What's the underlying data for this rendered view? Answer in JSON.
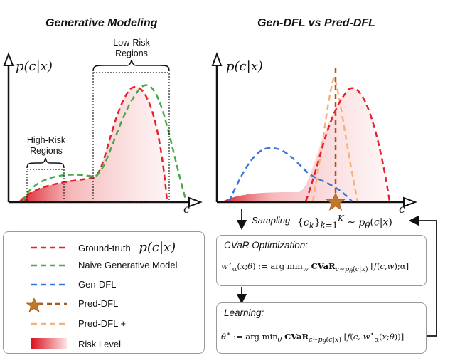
{
  "left_panel": {
    "title": "Generative Modeling",
    "ylabel": "p(c|x)",
    "xlabel": "c",
    "low_risk_label_line1": "Low-Risk",
    "low_risk_label_line2": "Regions",
    "high_risk_label_line1": "High-Risk",
    "high_risk_label_line2": "Regions"
  },
  "right_panel": {
    "title": "Gen-DFL vs Pred-DFL",
    "ylabel": "p(c|x)",
    "xlabel": "c"
  },
  "legend": {
    "items": [
      {
        "label": "Ground-truth",
        "math": "p(c|x)",
        "color": "#e8202a",
        "style": "dashed"
      },
      {
        "label": "Naive Generative Model",
        "color": "#4aa84a",
        "style": "dashed"
      },
      {
        "label": "Gen-DFL",
        "color": "#3b77d8",
        "style": "dashed"
      },
      {
        "label": "Pred-DFL",
        "color": "#a8581a",
        "style": "star-dashed"
      },
      {
        "label": "Pred-DFL +",
        "color": "#f6b27e",
        "style": "dashed"
      },
      {
        "label": "Risk Level",
        "color": "#e8202a",
        "style": "gradient"
      }
    ]
  },
  "pipeline": {
    "sampling_label": "Sampling",
    "sampling_formula": "{c_k}_{k=1}^K ~ p_θ(c|x)",
    "cvar_title": "CVaR Optimization:",
    "cvar_formula": "w*α(x;θ) := arg min_w CVaR_{c~pθ(c|x)} [f(c,w);α]",
    "learning_title": "Learning:",
    "learning_formula": "θ* := arg min_θ CVaR_{c~pθ(c|x)} [f(c, w*α(x;θ))]"
  },
  "colors": {
    "ground_truth": "#e8202a",
    "naive": "#4aa84a",
    "gen_dfl": "#3b77d8",
    "pred_dfl": "#a8581a",
    "pred_dfl_plus": "#f6b27e",
    "star": "#c0782a"
  }
}
